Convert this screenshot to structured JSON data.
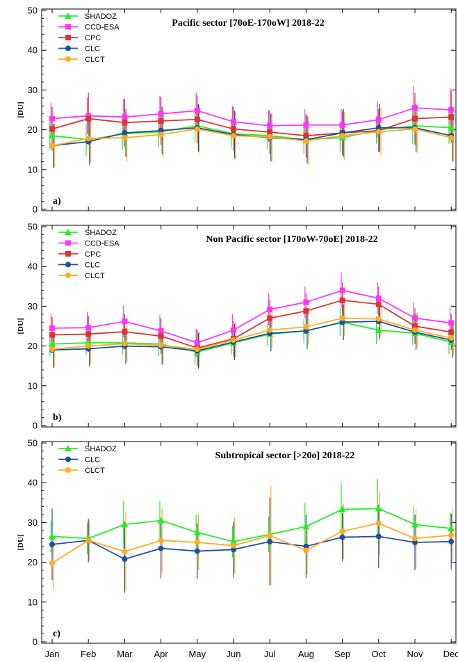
{
  "chart_data": [
    {
      "type": "line",
      "panel_label": "a)",
      "title": "Pacific sector [70oE-170oW] 2018-22",
      "ylabel": "[DU]",
      "ylim": [
        0,
        50
      ],
      "yticks": [
        "0",
        "10",
        "20",
        "30",
        "40",
        "50"
      ],
      "categories": [
        "Jan",
        "Feb",
        "Mar",
        "Apr",
        "May",
        "Jun",
        "Jul",
        "Aug",
        "Sep",
        "Oct",
        "Nov",
        "Dec"
      ],
      "legend_position": "top-left",
      "series": [
        {
          "name": "SHADOZ",
          "color": "#22ee22",
          "marker": "triangle",
          "values": [
            18.5,
            17.5,
            19.0,
            19.5,
            21.0,
            19.0,
            18.5,
            17.5,
            18.0,
            20.0,
            21.0,
            20.5
          ],
          "err": [
            3.5,
            4.0,
            4.0,
            4.0,
            4.0,
            3.5,
            3.5,
            3.5,
            3.5,
            3.5,
            4.5,
            4.0
          ]
        },
        {
          "name": "CCD-ESA",
          "color": "#ff33ff",
          "marker": "square",
          "values": [
            22.8,
            23.5,
            23.2,
            24.0,
            24.8,
            22.0,
            21.0,
            21.2,
            21.2,
            22.5,
            25.5,
            25.0
          ],
          "err": [
            4.0,
            4.5,
            4.5,
            4.5,
            4.5,
            4.0,
            4.0,
            4.0,
            4.0,
            4.5,
            5.5,
            5.5
          ]
        },
        {
          "name": "CPC",
          "color": "#dd3333",
          "marker": "square",
          "values": [
            20.2,
            22.8,
            21.8,
            22.2,
            22.6,
            20.2,
            19.4,
            18.5,
            19.2,
            19.8,
            22.8,
            23.2
          ],
          "err": [
            5.5,
            6.5,
            6.0,
            6.0,
            6.0,
            5.5,
            5.5,
            5.5,
            5.5,
            5.5,
            6.5,
            6.5
          ]
        },
        {
          "name": "CLC",
          "color": "#1f4fa0",
          "marker": "circle",
          "values": [
            16.0,
            17.0,
            19.2,
            19.8,
            20.5,
            18.8,
            18.0,
            17.5,
            19.2,
            20.5,
            20.5,
            18.5
          ],
          "err": [
            5.5,
            6.0,
            6.0,
            6.0,
            6.0,
            6.0,
            6.0,
            6.0,
            6.0,
            6.0,
            6.0,
            6.5
          ]
        },
        {
          "name": "CLCT",
          "color": "#ffaa22",
          "marker": "circle",
          "values": [
            16.0,
            17.8,
            18.0,
            18.8,
            20.2,
            18.5,
            18.2,
            17.2,
            18.5,
            19.5,
            20.2,
            18.0
          ],
          "err": [
            5.5,
            6.0,
            6.0,
            6.0,
            6.0,
            6.0,
            6.0,
            6.0,
            6.0,
            6.0,
            6.0,
            6.0
          ]
        }
      ]
    },
    {
      "type": "line",
      "panel_label": "b)",
      "title": "Non Pacific sector [170oW-70oE] 2018-22",
      "ylabel": "[DU]",
      "ylim": [
        0,
        50
      ],
      "yticks": [
        "0",
        "10",
        "20",
        "30",
        "40",
        "50"
      ],
      "categories": [
        "Jan",
        "Feb",
        "Mar",
        "Apr",
        "May",
        "Jun",
        "Jul",
        "Aug",
        "Sep",
        "Oct",
        "Nov",
        "Dec"
      ],
      "legend_position": "top-left",
      "series": [
        {
          "name": "SHADOZ",
          "color": "#22ee22",
          "marker": "triangle",
          "values": [
            20.5,
            20.8,
            20.8,
            20.5,
            18.5,
            20.8,
            23.0,
            23.8,
            26.0,
            24.0,
            23.2,
            21.0
          ],
          "err": [
            3.0,
            3.0,
            3.0,
            3.0,
            3.0,
            3.0,
            3.0,
            3.0,
            3.5,
            3.5,
            3.0,
            3.0
          ]
        },
        {
          "name": "CCD-ESA",
          "color": "#ff33ff",
          "marker": "square",
          "values": [
            24.5,
            24.6,
            26.2,
            23.8,
            20.8,
            24.0,
            29.2,
            31.0,
            34.0,
            32.0,
            27.0,
            25.8
          ],
          "err": [
            3.5,
            4.0,
            4.0,
            4.0,
            3.5,
            4.0,
            4.0,
            4.0,
            4.5,
            4.0,
            4.0,
            4.0
          ]
        },
        {
          "name": "CPC",
          "color": "#dd3333",
          "marker": "square",
          "values": [
            22.8,
            23.0,
            23.6,
            22.5,
            19.5,
            21.8,
            27.0,
            28.8,
            31.5,
            30.5,
            25.0,
            23.5
          ],
          "err": [
            4.5,
            4.5,
            4.5,
            4.5,
            4.5,
            4.5,
            4.5,
            4.5,
            4.5,
            4.5,
            4.5,
            4.5
          ]
        },
        {
          "name": "CLC",
          "color": "#1f4fa0",
          "marker": "circle",
          "values": [
            19.0,
            19.3,
            20.0,
            19.8,
            18.8,
            21.0,
            23.2,
            23.8,
            26.0,
            26.2,
            23.5,
            21.5
          ],
          "err": [
            4.5,
            4.5,
            4.5,
            4.5,
            4.5,
            4.5,
            4.5,
            4.5,
            4.5,
            4.5,
            4.5,
            4.5
          ]
        },
        {
          "name": "CLCT",
          "color": "#ffaa22",
          "marker": "circle",
          "values": [
            19.2,
            20.0,
            20.6,
            20.2,
            19.2,
            21.5,
            24.0,
            24.8,
            27.0,
            26.8,
            24.0,
            22.0
          ],
          "err": [
            4.5,
            4.5,
            4.5,
            4.5,
            4.5,
            4.5,
            4.5,
            4.5,
            4.5,
            4.5,
            4.5,
            4.5
          ]
        }
      ]
    },
    {
      "type": "line",
      "panel_label": "c)",
      "title": "Subtropical sector [>20o] 2018-22",
      "ylabel": "[DU]",
      "ylim": [
        0,
        50
      ],
      "yticks": [
        "0",
        "10",
        "20",
        "30",
        "40",
        "50"
      ],
      "categories": [
        "Jan",
        "Feb",
        "Mar",
        "Apr",
        "May",
        "Jun",
        "Jul",
        "Aug",
        "Sep",
        "Oct",
        "Nov",
        "Dec"
      ],
      "legend_position": "top-left",
      "series": [
        {
          "name": "SHADOZ",
          "color": "#22ee22",
          "marker": "triangle",
          "values": [
            26.5,
            26.0,
            29.5,
            30.5,
            27.5,
            25.2,
            27.0,
            29.0,
            33.3,
            33.5,
            29.5,
            28.5
          ],
          "err": [
            4.0,
            4.0,
            6.0,
            5.0,
            4.5,
            4.0,
            4.5,
            6.0,
            6.5,
            7.5,
            4.5,
            4.0
          ]
        },
        {
          "name": "CLC",
          "color": "#1f4fa0",
          "marker": "circle",
          "values": [
            24.5,
            25.5,
            20.8,
            23.5,
            22.8,
            23.2,
            25.2,
            24.0,
            26.3,
            26.5,
            25.0,
            25.2
          ],
          "err": [
            9.0,
            5.5,
            8.5,
            7.5,
            7.0,
            7.0,
            11.0,
            8.0,
            6.0,
            8.0,
            7.0,
            7.0
          ]
        },
        {
          "name": "CLCT",
          "color": "#ffaa22",
          "marker": "circle",
          "values": [
            19.8,
            25.5,
            22.7,
            25.5,
            25.0,
            24.2,
            26.7,
            23.0,
            27.8,
            29.8,
            26.0,
            26.8
          ],
          "err": [
            6.5,
            5.0,
            10.0,
            8.0,
            7.0,
            7.0,
            12.5,
            6.0,
            7.0,
            8.0,
            7.5,
            7.0
          ]
        }
      ]
    }
  ]
}
